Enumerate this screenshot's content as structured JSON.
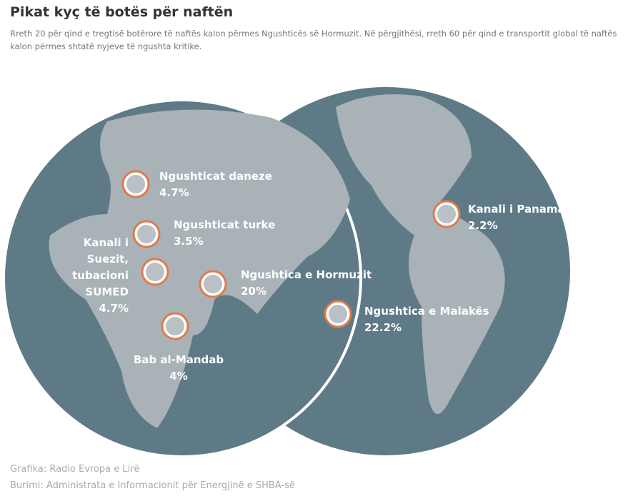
{
  "header": {
    "title": "Pikat kyç të botës për naftën",
    "subtitle_lines": [
      "Rreth 20 për qind e tregtisë botërore të naftës kalon përmes Ngushticës së Hormuzit. Në përgjithësi, rreth 60 për qind e transportit global të naftës",
      "kalon përmes shtatë nyjeve të ngushta kritike."
    ]
  },
  "points": [
    {
      "label_lines": [
        "Ngushticat daneze"
      ],
      "value": "4.7%"
    },
    {
      "label_lines": [
        "Ngushticat turke"
      ],
      "value": "3.5%"
    },
    {
      "label_lines": [
        "Kanali i",
        "Suezit,",
        "tubacioni",
        "SUMED"
      ],
      "value": "4.7%"
    },
    {
      "label_lines": [
        "Ngushtica e Hormuzit"
      ],
      "value": "20%"
    },
    {
      "label_lines": [
        "Bab al-Mandab"
      ],
      "value": "4%"
    },
    {
      "label_lines": [
        "Kanali i Panamasë"
      ],
      "value": "2.2%"
    },
    {
      "label_lines": [
        "Ngushtica e Malakës"
      ],
      "value": "22.2%"
    }
  ],
  "footer": {
    "credit": "Grafika: Radio Evropa e Lirë",
    "source": "Burimi: Administrata e Informacionit për Energjinë e SHBA-së"
  }
}
